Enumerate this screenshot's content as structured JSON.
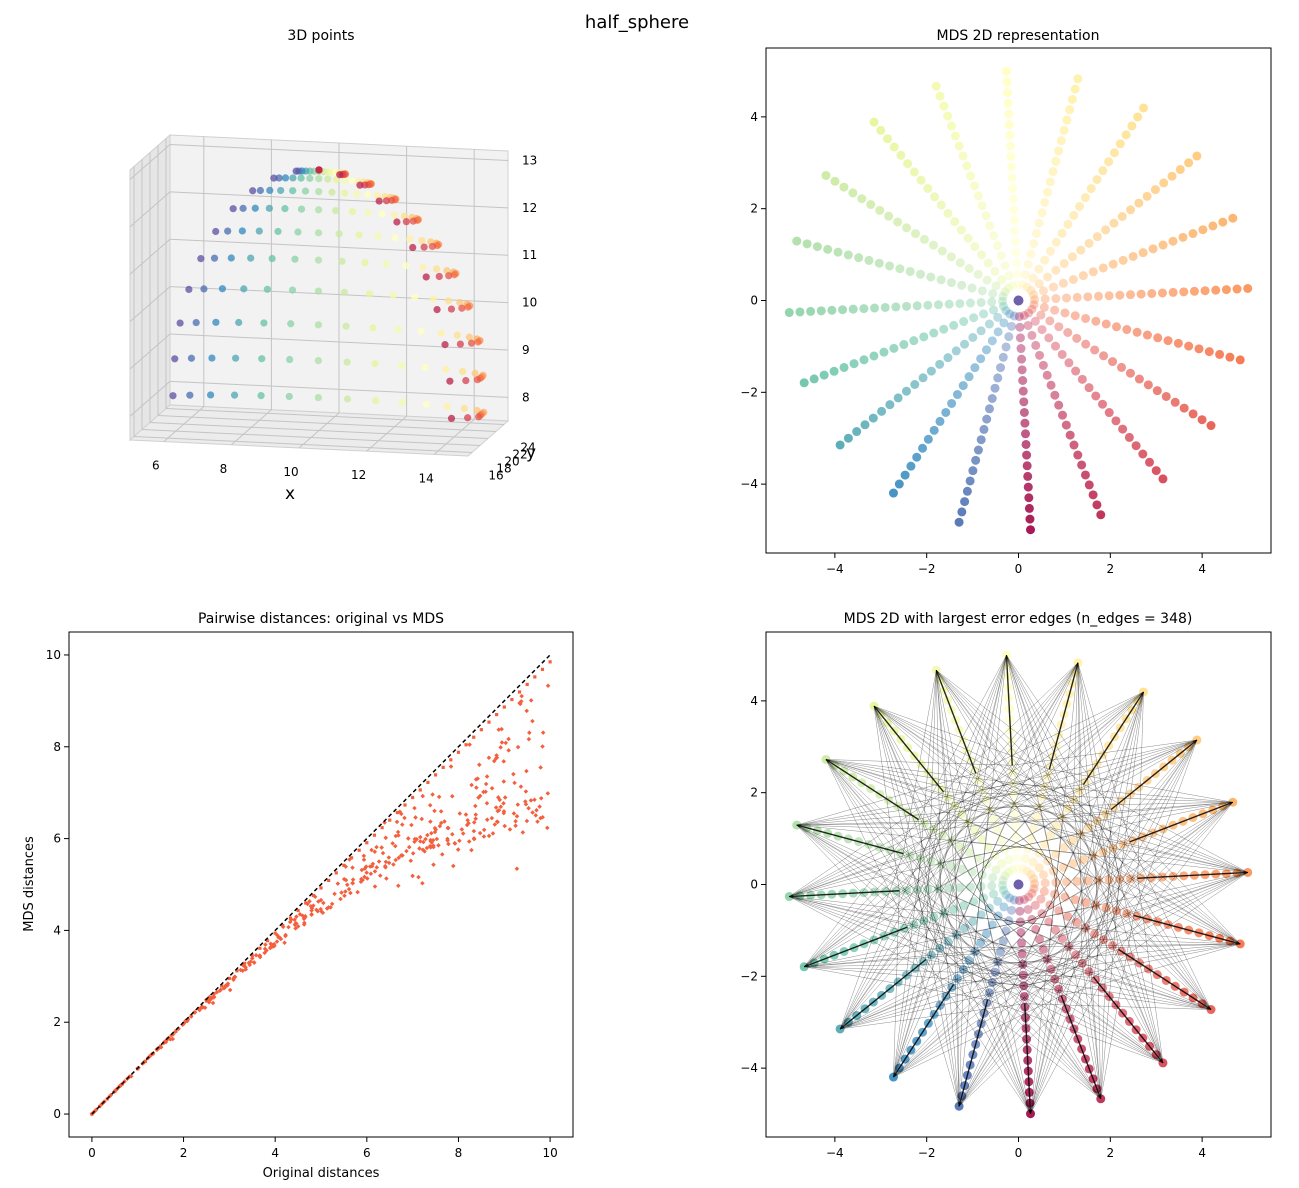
{
  "figure": {
    "suptitle": "half_sphere"
  },
  "chart_data": [
    {
      "id": "panel-3d",
      "type": "scatter3d",
      "title": "3D points",
      "xlabel": "x",
      "ylabel": "y",
      "zlabel": "",
      "x_ticks": [
        "6",
        "8",
        "10",
        "12",
        "14"
      ],
      "y_ticks": [
        "16",
        "18",
        "20",
        "22",
        "24"
      ],
      "z_ticks": [
        "8",
        "9",
        "10",
        "11",
        "12",
        "13"
      ],
      "center": [
        10,
        20,
        8
      ],
      "radius": 5,
      "n_meridians": 20,
      "n_rings": 11,
      "colormap": "Spectral",
      "grid": true
    },
    {
      "id": "panel-mds",
      "type": "scatter",
      "title": "MDS 2D representation",
      "xlabel": "",
      "ylabel": "",
      "xlim": [
        -5.5,
        5.5
      ],
      "ylim": [
        -5.5,
        5.5
      ],
      "x_ticks": [
        -4,
        -2,
        0,
        2,
        4
      ],
      "y_ticks": [
        -4,
        -2,
        0,
        2,
        4
      ],
      "n_rays": 20,
      "n_rings": 11,
      "max_radius": 5.0,
      "colormap": "Spectral"
    },
    {
      "id": "panel-dist",
      "type": "scatter",
      "title": "Pairwise distances: original vs MDS",
      "xlabel": "Original distances",
      "ylabel": "MDS distances",
      "xlim": [
        -0.5,
        10.5
      ],
      "ylim": [
        -0.5,
        10.5
      ],
      "x_ticks": [
        0,
        2,
        4,
        6,
        8,
        10
      ],
      "y_ticks": [
        0,
        2,
        4,
        6,
        8,
        10
      ],
      "point_color": "#f4603e",
      "reference_line": "y = x (dashed, black)"
    },
    {
      "id": "panel-edges",
      "type": "scatter",
      "title": "MDS 2D with largest error edges (n_edges = 348)",
      "xlabel": "",
      "ylabel": "",
      "xlim": [
        -5.5,
        5.5
      ],
      "ylim": [
        -5.5,
        5.5
      ],
      "x_ticks": [
        -4,
        -2,
        0,
        2,
        4
      ],
      "y_ticks": [
        -4,
        -2,
        0,
        2,
        4
      ],
      "n_edges": 348,
      "colormap": "Spectral",
      "edge_color": "#000000"
    }
  ]
}
